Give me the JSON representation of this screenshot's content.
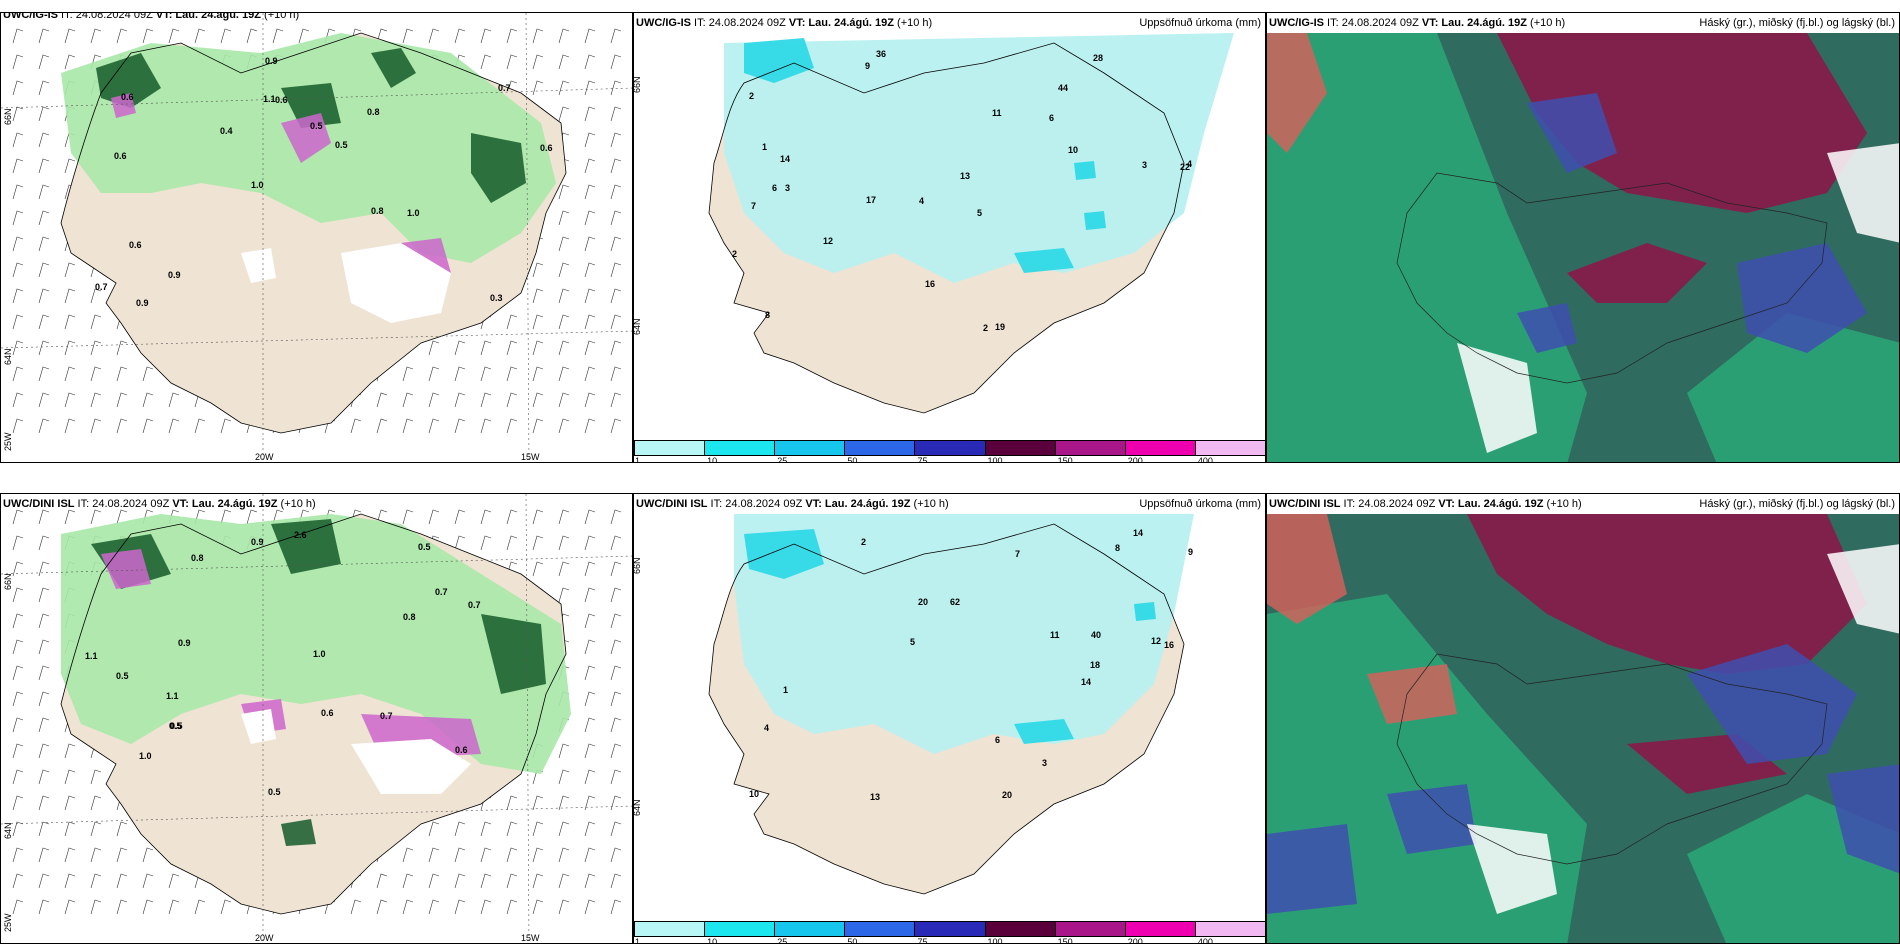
{
  "colors": {
    "land": "#efe3d3",
    "precip_light": "#b8f0f0",
    "precip_cyan": "#2fd9e6",
    "green_light": "#a8e8a8",
    "green_dark": "#155a2a",
    "magenta": "#cc66cc",
    "cloud_high": "#8a1a4a",
    "cloud_mid": "#3e4fb0",
    "cloud_low": "#2aa878",
    "cloud_sea": "#2f6b5f"
  },
  "rows": [
    {
      "model": "UWC/IG-IS",
      "panels": {
        "wind": {
          "header_model": "UWC/IG-IS",
          "header_rest": " IT: 24.08.2024 09Z ",
          "vt_label": "VT: Lau. 24.ágú. 19Z",
          "lead": " (+10 h)",
          "lat_labels": [
            "66N",
            "64N"
          ],
          "lon_labels": [
            "25W",
            "20W",
            "15W"
          ],
          "values": [
            "0.3",
            "0.6",
            "0.7",
            "1.0",
            "0.8",
            "0.9",
            "1.1",
            "0.5",
            "0.6",
            "0.4",
            "0.7",
            "0.9",
            "0.6",
            "0.5",
            "1.0",
            "0.6",
            "0.9",
            "0.6",
            "0.8"
          ]
        },
        "precip": {
          "header_model": "UWC/IG-IS",
          "header_rest": " IT: 24.08.2024 09Z ",
          "vt_label": "VT: Lau. 24.ágú. 19Z",
          "lead": " (+10 h)",
          "right_title": "Uppsöfnuð úrkoma (mm)",
          "lat_labels": [
            "66N",
            "64N"
          ],
          "values": [
            "36",
            "44",
            "22",
            "4",
            "5",
            "3",
            "2",
            "6",
            "7",
            "11",
            "13",
            "8",
            "9",
            "17",
            "2",
            "19",
            "16",
            "28",
            "10",
            "12",
            "14",
            "6",
            "4",
            "3",
            "2",
            "1"
          ]
        },
        "cloud": {
          "header_model": "UWC/IG-IS",
          "header_rest": " IT: 24.08.2024 09Z ",
          "vt_label": "VT: Lau. 24.ágú. 19Z",
          "lead": " (+10 h)",
          "right_title": "Háský (gr.), miðský (fj.bl.) og lágský (bl.)"
        }
      }
    },
    {
      "model": "UWC/DINI ISL",
      "panels": {
        "wind": {
          "header_model": "UWC/DINI ISL",
          "header_rest": " IT: 24.08.2024 09Z ",
          "vt_label": "VT: Lau. 24.ágú. 19Z",
          "lead": " (+10 h)",
          "lat_labels": [
            "66N",
            "64N"
          ],
          "lon_labels": [
            "25W",
            "20W",
            "15W"
          ],
          "values": [
            "1.0",
            "0.5",
            "0.8",
            "0.7",
            "0.6",
            "0.9",
            "1.1",
            "0.5",
            "0.7",
            "0.8",
            "0.5",
            "2.6",
            "0.7",
            "1.0",
            "0.5",
            "0.9",
            "0.6",
            "1.1",
            "0.5"
          ]
        },
        "precip": {
          "header_model": "UWC/DINI ISL",
          "header_rest": " IT: 24.08.2024 09Z ",
          "vt_label": "VT: Lau. 24.ágú. 19Z",
          "lead": " (+10 h)",
          "right_title": "Uppsöfnuð úrkoma (mm)",
          "lat_labels": [
            "66N",
            "64N"
          ],
          "values": [
            "62",
            "40",
            "20",
            "14",
            "8",
            "10",
            "11",
            "9",
            "12",
            "7",
            "6",
            "13",
            "14",
            "16",
            "20",
            "18",
            "5",
            "4",
            "3",
            "2",
            "1"
          ]
        },
        "cloud": {
          "header_model": "UWC/DINI ISL",
          "header_rest": " IT: 24.08.2024 09Z ",
          "vt_label": "VT: Lau. 24.ágú. 19Z",
          "lead": " (+10 h)",
          "right_title": "Háský (gr.), miðský (fj.bl.) og lágský (bl.)"
        }
      }
    }
  ],
  "legend": {
    "ticks": [
      "1",
      "10",
      "25",
      "50",
      "75",
      "100",
      "150",
      "200",
      "400"
    ],
    "colors": [
      "#b9f7f7",
      "#1ce6ee",
      "#16c6ec",
      "#2b67e6",
      "#2a2ab8",
      "#5a003a",
      "#a8168a",
      "#ee00b0",
      "#f2b8f2"
    ]
  }
}
